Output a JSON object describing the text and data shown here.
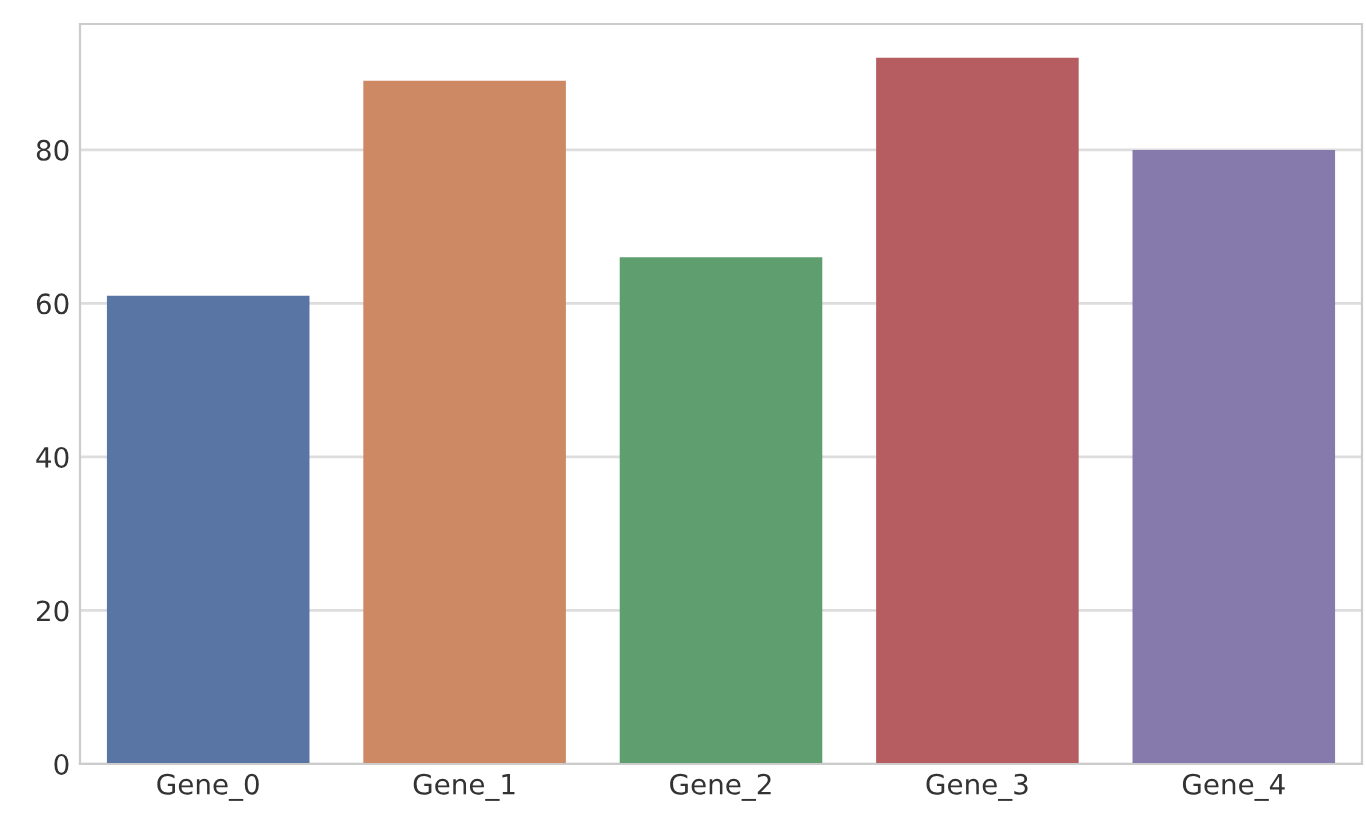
{
  "chart_data": {
    "type": "bar",
    "categories": [
      "Gene_0",
      "Gene_1",
      "Gene_2",
      "Gene_3",
      "Gene_4"
    ],
    "values": [
      61,
      89,
      66,
      92,
      80
    ],
    "colors": [
      "#5875a4",
      "#cc8963",
      "#5f9e6e",
      "#b55d60",
      "#857aab"
    ],
    "ylim": [
      0,
      96.4
    ],
    "yticks": [
      0,
      20,
      40,
      60,
      80
    ],
    "grid": "y"
  }
}
